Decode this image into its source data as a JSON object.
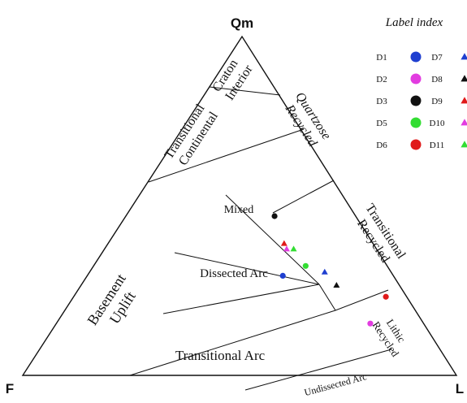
{
  "vertices": {
    "top": "Qm",
    "left": "F",
    "right": "L"
  },
  "fields": [
    {
      "id": "craton-interior",
      "lines": [
        "Craton",
        "Interior"
      ]
    },
    {
      "id": "transitional-continental",
      "lines": [
        "Transitional",
        "Continental"
      ]
    },
    {
      "id": "basement-uplift",
      "lines": [
        "Basement",
        "Uplift"
      ]
    },
    {
      "id": "quartzose-recycled",
      "lines": [
        "Quartzose",
        "Recycled"
      ]
    },
    {
      "id": "transitional-recycled",
      "lines": [
        "Transitional",
        "Recycled"
      ]
    },
    {
      "id": "lithic-recycled",
      "lines": [
        "Lithic",
        "Recycled"
      ]
    },
    {
      "id": "mixed",
      "lines": [
        "Mixed"
      ]
    },
    {
      "id": "dissected-arc",
      "lines": [
        "Dissected Arc"
      ]
    },
    {
      "id": "transitional-arc",
      "lines": [
        "Transitional Arc"
      ]
    },
    {
      "id": "undissected-arc",
      "lines": [
        "Undissected Arc"
      ]
    }
  ],
  "legend": {
    "title": "Label index",
    "items": [
      {
        "label": "D1",
        "shape": "circle",
        "color": "#1f3fd0"
      },
      {
        "label": "D2",
        "shape": "circle",
        "color": "#e23ce0"
      },
      {
        "label": "D3",
        "shape": "circle",
        "color": "#111111"
      },
      {
        "label": "D5",
        "shape": "circle",
        "color": "#33dd33"
      },
      {
        "label": "D6",
        "shape": "circle",
        "color": "#e01a1a"
      },
      {
        "label": "D7",
        "shape": "triangle",
        "color": "#1f3fd0"
      },
      {
        "label": "D8",
        "shape": "triangle",
        "color": "#111111"
      },
      {
        "label": "D9",
        "shape": "triangle",
        "color": "#e01a1a"
      },
      {
        "label": "D10",
        "shape": "triangle",
        "color": "#e23ce0"
      },
      {
        "label": "D11",
        "shape": "triangle",
        "color": "#33dd33"
      }
    ]
  },
  "samples": [
    {
      "label": "D3",
      "shape": "circle",
      "color": "#111111",
      "Qm": 47.0,
      "F": 18.7,
      "L": 34.3
    },
    {
      "label": "D9",
      "shape": "triangle",
      "color": "#e01a1a",
      "Qm": 38.9,
      "F": 20.5,
      "L": 40.6
    },
    {
      "label": "D10",
      "shape": "triangle",
      "color": "#e23ce0",
      "Qm": 37.3,
      "F": 20.7,
      "L": 42.0
    },
    {
      "label": "D11",
      "shape": "triangle",
      "color": "#33dd33",
      "Qm": 37.3,
      "F": 19.1,
      "L": 43.6
    },
    {
      "label": "D5",
      "shape": "circle",
      "color": "#33dd33",
      "Qm": 32.3,
      "F": 18.8,
      "L": 48.9
    },
    {
      "label": "D7",
      "shape": "triangle",
      "color": "#1f3fd0",
      "Qm": 30.5,
      "F": 15.3,
      "L": 54.2
    },
    {
      "label": "D1",
      "shape": "circle",
      "color": "#1f3fd0",
      "Qm": 29.4,
      "F": 25.5,
      "L": 45.1
    },
    {
      "label": "D6",
      "shape": "circle",
      "color": "#e01a1a",
      "Qm": 23.2,
      "F": 4.8,
      "L": 72.0
    },
    {
      "label": "D8",
      "shape": "triangle",
      "color": "#111111",
      "Qm": 26.6,
      "F": 14.5,
      "L": 58.9
    },
    {
      "label": "D2",
      "shape": "circle",
      "color": "#e23ce0",
      "Qm": 15.3,
      "F": 12.3,
      "L": 72.4
    }
  ]
}
